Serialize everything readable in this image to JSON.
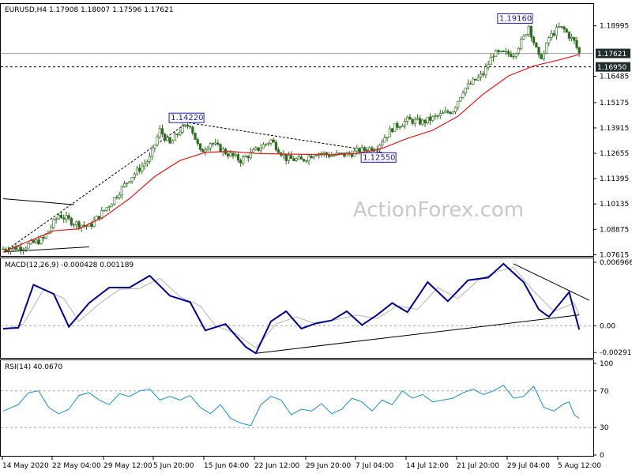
{
  "header": {
    "symbol_line": "EURUSD,H4  1.17908 1.18007 1.17596 1.17621"
  },
  "watermark": "ActionForex.com",
  "colors": {
    "background": "#ffffff",
    "candle": "#2e6b1e",
    "ma": "#e41a1c",
    "macd_main": "#00008b",
    "macd_signal": "#b4b4b4",
    "rsi": "#1e8fc9",
    "trendline": "#000000",
    "price_tag_bg": "#1f2d2e",
    "price_tag_text": "#ffffff",
    "label_box": "#1a1aa0",
    "axis": "#000000",
    "level_line": "#999999"
  },
  "chart_data": [
    {
      "type": "candlestick",
      "title": "EURUSD,H4",
      "ohlc_last": {
        "open": 1.17908,
        "high": 1.18007,
        "low": 1.17596,
        "close": 1.17621
      },
      "x_tick_labels": [
        "14 May 2020",
        "22 May 04:00",
        "29 May 12:00",
        "5 Jun 20:00",
        "15 Jun 04:00",
        "22 Jun 12:00",
        "29 Jun 20:00",
        "7 Jul 04:00",
        "14 Jul 12:00",
        "21 Jul 20:00",
        "29 Jul 04:00",
        "5 Aug 12:00"
      ],
      "y_tick_labels": [
        "1.18995",
        "1.16485",
        "1.15175",
        "1.13915",
        "1.12655",
        "1.11395",
        "1.10135",
        "1.08875",
        "1.07615"
      ],
      "ylim": [
        1.0755,
        1.2008
      ],
      "current_price": "1.17621",
      "horizontal_level": "1.16950",
      "annotations": [
        "1.19160",
        "1.14220",
        "1.12550"
      ],
      "close_path": [
        {
          "x": 0,
          "y": 1.079
        },
        {
          "x": 4,
          "y": 1.08
        },
        {
          "x": 8,
          "y": 1.084
        },
        {
          "x": 11,
          "y": 1.096
        },
        {
          "x": 14,
          "y": 1.092
        },
        {
          "x": 17,
          "y": 1.09
        },
        {
          "x": 21,
          "y": 1.101
        },
        {
          "x": 25,
          "y": 1.114
        },
        {
          "x": 29,
          "y": 1.124
        },
        {
          "x": 31,
          "y": 1.138
        },
        {
          "x": 33,
          "y": 1.131
        },
        {
          "x": 35,
          "y": 1.138
        },
        {
          "x": 37,
          "y": 1.141
        },
        {
          "x": 39,
          "y": 1.127
        },
        {
          "x": 41,
          "y": 1.132
        },
        {
          "x": 44,
          "y": 1.127
        },
        {
          "x": 47,
          "y": 1.123
        },
        {
          "x": 50,
          "y": 1.128
        },
        {
          "x": 53,
          "y": 1.133
        },
        {
          "x": 56,
          "y": 1.124
        },
        {
          "x": 59,
          "y": 1.123
        },
        {
          "x": 62,
          "y": 1.127
        },
        {
          "x": 65,
          "y": 1.1255
        },
        {
          "x": 68,
          "y": 1.126
        },
        {
          "x": 71,
          "y": 1.128
        },
        {
          "x": 74,
          "y": 1.13
        },
        {
          "x": 77,
          "y": 1.139
        },
        {
          "x": 80,
          "y": 1.143
        },
        {
          "x": 83,
          "y": 1.142
        },
        {
          "x": 86,
          "y": 1.145
        },
        {
          "x": 89,
          "y": 1.148
        },
        {
          "x": 91,
          "y": 1.158
        },
        {
          "x": 93,
          "y": 1.162
        },
        {
          "x": 95,
          "y": 1.166
        },
        {
          "x": 97,
          "y": 1.176
        },
        {
          "x": 99,
          "y": 1.176
        },
        {
          "x": 101,
          "y": 1.176
        },
        {
          "x": 103,
          "y": 1.184
        },
        {
          "x": 104,
          "y": 1.19
        },
        {
          "x": 105,
          "y": 1.182
        },
        {
          "x": 106,
          "y": 1.174
        },
        {
          "x": 107,
          "y": 1.176
        },
        {
          "x": 108,
          "y": 1.184
        },
        {
          "x": 110,
          "y": 1.189
        },
        {
          "x": 111,
          "y": 1.188
        },
        {
          "x": 113,
          "y": 1.182
        },
        {
          "x": 114,
          "y": 1.1762
        }
      ],
      "ma_path": [
        {
          "x": 0,
          "y": 1.0775
        },
        {
          "x": 10,
          "y": 1.088
        },
        {
          "x": 15,
          "y": 1.089
        },
        {
          "x": 20,
          "y": 1.095
        },
        {
          "x": 25,
          "y": 1.104
        },
        {
          "x": 30,
          "y": 1.115
        },
        {
          "x": 35,
          "y": 1.123
        },
        {
          "x": 40,
          "y": 1.127
        },
        {
          "x": 45,
          "y": 1.1275
        },
        {
          "x": 50,
          "y": 1.1265
        },
        {
          "x": 55,
          "y": 1.1262
        },
        {
          "x": 60,
          "y": 1.126
        },
        {
          "x": 65,
          "y": 1.1258
        },
        {
          "x": 70,
          "y": 1.1265
        },
        {
          "x": 75,
          "y": 1.129
        },
        {
          "x": 80,
          "y": 1.134
        },
        {
          "x": 85,
          "y": 1.138
        },
        {
          "x": 90,
          "y": 1.145
        },
        {
          "x": 95,
          "y": 1.156
        },
        {
          "x": 100,
          "y": 1.165
        },
        {
          "x": 105,
          "y": 1.17
        },
        {
          "x": 110,
          "y": 1.173
        },
        {
          "x": 114,
          "y": 1.1757
        }
      ],
      "trendlines": [
        [
          {
            "x": 0,
            "y": 1.104
          },
          {
            "x": 14,
            "y": 1.101
          }
        ],
        [
          {
            "x": 0,
            "y": 1.0775
          },
          {
            "x": 17,
            "y": 1.08
          }
        ],
        [
          {
            "x": 1,
            "y": 1.079
          },
          {
            "x": 36,
            "y": 1.141
          }
        ],
        [
          {
            "x": 36,
            "y": 1.142
          },
          {
            "x": 75,
            "y": 1.127
          }
        ]
      ]
    },
    {
      "type": "line",
      "title": "MACD(12,26,9) -0.000428 0.001189",
      "y_tick_labels": [
        "0.006966",
        "0.00",
        "-0.002913"
      ],
      "ylim": [
        -0.0035,
        0.0074
      ],
      "series": [
        {
          "name": "MACD",
          "values": [
            {
              "x": 0,
              "y": -0.0003
            },
            {
              "x": 3,
              "y": -0.0002
            },
            {
              "x": 6,
              "y": 0.0045
            },
            {
              "x": 10,
              "y": 0.0035
            },
            {
              "x": 13,
              "y": -0.0001
            },
            {
              "x": 17,
              "y": 0.0025
            },
            {
              "x": 21,
              "y": 0.0042
            },
            {
              "x": 25,
              "y": 0.0042
            },
            {
              "x": 29,
              "y": 0.0055
            },
            {
              "x": 33,
              "y": 0.0033
            },
            {
              "x": 37,
              "y": 0.0026
            },
            {
              "x": 40,
              "y": -0.0005
            },
            {
              "x": 44,
              "y": 0.0002
            },
            {
              "x": 48,
              "y": -0.0023
            },
            {
              "x": 50,
              "y": -0.003
            },
            {
              "x": 53,
              "y": 0.0005
            },
            {
              "x": 56,
              "y": 0.0016
            },
            {
              "x": 59,
              "y": -0.0003
            },
            {
              "x": 62,
              "y": 0.0003
            },
            {
              "x": 65,
              "y": 0.0006
            },
            {
              "x": 68,
              "y": 0.0016
            },
            {
              "x": 71,
              "y": 0.0001
            },
            {
              "x": 74,
              "y": 0.0012
            },
            {
              "x": 77,
              "y": 0.0025
            },
            {
              "x": 80,
              "y": 0.0015
            },
            {
              "x": 84,
              "y": 0.0048
            },
            {
              "x": 88,
              "y": 0.0027
            },
            {
              "x": 92,
              "y": 0.005
            },
            {
              "x": 96,
              "y": 0.0053
            },
            {
              "x": 99,
              "y": 0.0068
            },
            {
              "x": 103,
              "y": 0.0048
            },
            {
              "x": 106,
              "y": 0.0018
            },
            {
              "x": 108,
              "y": 0.001
            },
            {
              "x": 112,
              "y": 0.0037
            },
            {
              "x": 114,
              "y": -0.0004
            }
          ]
        },
        {
          "name": "Signal",
          "values": [
            {
              "x": 0,
              "y": -0.0004
            },
            {
              "x": 4,
              "y": 0.0002
            },
            {
              "x": 8,
              "y": 0.004
            },
            {
              "x": 12,
              "y": 0.003
            },
            {
              "x": 15,
              "y": 0.0005
            },
            {
              "x": 19,
              "y": 0.0024
            },
            {
              "x": 23,
              "y": 0.004
            },
            {
              "x": 27,
              "y": 0.0041
            },
            {
              "x": 31,
              "y": 0.0052
            },
            {
              "x": 35,
              "y": 0.0032
            },
            {
              "x": 39,
              "y": 0.0022
            },
            {
              "x": 42,
              "y": 0.0
            },
            {
              "x": 46,
              "y": -0.0008
            },
            {
              "x": 50,
              "y": -0.0024
            },
            {
              "x": 54,
              "y": 0.0002
            },
            {
              "x": 58,
              "y": 0.001
            },
            {
              "x": 62,
              "y": 0.0002
            },
            {
              "x": 66,
              "y": 0.0007
            },
            {
              "x": 70,
              "y": 0.0012
            },
            {
              "x": 74,
              "y": 0.0008
            },
            {
              "x": 78,
              "y": 0.0022
            },
            {
              "x": 82,
              "y": 0.0018
            },
            {
              "x": 86,
              "y": 0.0042
            },
            {
              "x": 90,
              "y": 0.003
            },
            {
              "x": 94,
              "y": 0.005
            },
            {
              "x": 98,
              "y": 0.006
            },
            {
              "x": 101,
              "y": 0.0064
            },
            {
              "x": 105,
              "y": 0.0038
            },
            {
              "x": 109,
              "y": 0.0016
            },
            {
              "x": 113,
              "y": 0.0025
            },
            {
              "x": 114,
              "y": 0.0012
            }
          ]
        }
      ],
      "trendlines": [
        [
          {
            "x": 50,
            "y": -0.003
          },
          {
            "x": 114,
            "y": 0.0012
          }
        ],
        [
          {
            "x": 101,
            "y": 0.0068
          },
          {
            "x": 116,
            "y": 0.0028
          }
        ]
      ]
    },
    {
      "type": "line",
      "title": "RSI(14) 40.0670",
      "y_tick_labels": [
        "100",
        "70",
        "30",
        "0"
      ],
      "ylim": [
        0,
        100
      ],
      "levels": [
        70,
        30
      ],
      "series": [
        {
          "name": "RSI",
          "values": [
            {
              "x": 0,
              "y": 48
            },
            {
              "x": 3,
              "y": 55
            },
            {
              "x": 5,
              "y": 68
            },
            {
              "x": 7,
              "y": 70
            },
            {
              "x": 9,
              "y": 52
            },
            {
              "x": 11,
              "y": 45
            },
            {
              "x": 13,
              "y": 50
            },
            {
              "x": 15,
              "y": 65
            },
            {
              "x": 17,
              "y": 68
            },
            {
              "x": 19,
              "y": 60
            },
            {
              "x": 21,
              "y": 55
            },
            {
              "x": 23,
              "y": 67
            },
            {
              "x": 25,
              "y": 64
            },
            {
              "x": 27,
              "y": 70
            },
            {
              "x": 29,
              "y": 72
            },
            {
              "x": 31,
              "y": 60
            },
            {
              "x": 33,
              "y": 64
            },
            {
              "x": 35,
              "y": 60
            },
            {
              "x": 37,
              "y": 65
            },
            {
              "x": 39,
              "y": 52
            },
            {
              "x": 41,
              "y": 45
            },
            {
              "x": 43,
              "y": 55
            },
            {
              "x": 45,
              "y": 40
            },
            {
              "x": 47,
              "y": 35
            },
            {
              "x": 49,
              "y": 32
            },
            {
              "x": 51,
              "y": 55
            },
            {
              "x": 53,
              "y": 64
            },
            {
              "x": 55,
              "y": 60
            },
            {
              "x": 57,
              "y": 44
            },
            {
              "x": 59,
              "y": 50
            },
            {
              "x": 61,
              "y": 48
            },
            {
              "x": 63,
              "y": 56
            },
            {
              "x": 65,
              "y": 45
            },
            {
              "x": 67,
              "y": 50
            },
            {
              "x": 69,
              "y": 62
            },
            {
              "x": 71,
              "y": 58
            },
            {
              "x": 73,
              "y": 48
            },
            {
              "x": 75,
              "y": 60
            },
            {
              "x": 77,
              "y": 55
            },
            {
              "x": 79,
              "y": 70
            },
            {
              "x": 81,
              "y": 62
            },
            {
              "x": 83,
              "y": 66
            },
            {
              "x": 85,
              "y": 58
            },
            {
              "x": 87,
              "y": 60
            },
            {
              "x": 89,
              "y": 62
            },
            {
              "x": 91,
              "y": 68
            },
            {
              "x": 93,
              "y": 72
            },
            {
              "x": 95,
              "y": 66
            },
            {
              "x": 97,
              "y": 70
            },
            {
              "x": 99,
              "y": 76
            },
            {
              "x": 101,
              "y": 62
            },
            {
              "x": 103,
              "y": 64
            },
            {
              "x": 105,
              "y": 75
            },
            {
              "x": 107,
              "y": 52
            },
            {
              "x": 109,
              "y": 48
            },
            {
              "x": 111,
              "y": 56
            },
            {
              "x": 112,
              "y": 58
            },
            {
              "x": 113,
              "y": 44
            },
            {
              "x": 114,
              "y": 40
            }
          ]
        }
      ]
    }
  ]
}
